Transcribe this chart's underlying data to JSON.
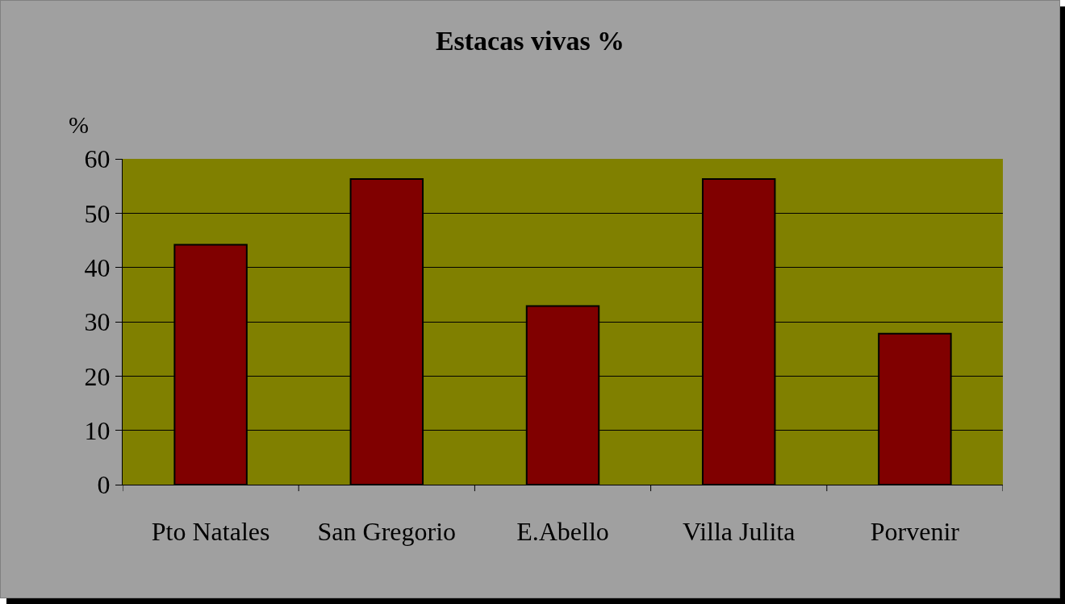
{
  "chart_data": {
    "type": "bar",
    "title": "Estacas vivas %",
    "ylabel": "%",
    "categories": [
      "Pto Natales",
      "San Gregorio",
      "E.Abello",
      "Villa Julita",
      "Porvenir"
    ],
    "values": [
      44.2,
      56.3,
      32.9,
      56.3,
      27.8
    ],
    "color": "#800000",
    "ylim": [
      0,
      60
    ],
    "yticks": [
      0,
      10,
      20,
      30,
      40,
      50,
      60
    ],
    "grid": "y",
    "legend": false
  }
}
